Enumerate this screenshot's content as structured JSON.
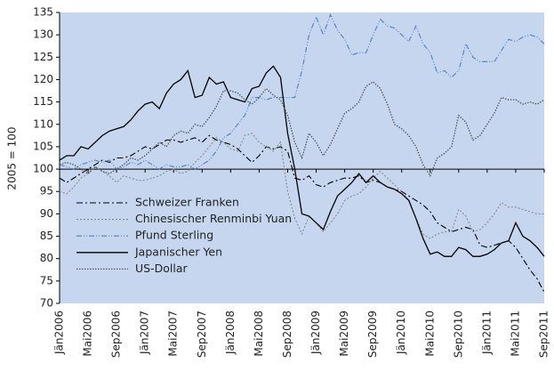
{
  "chart_data": {
    "type": "line",
    "y_axis_label": "2005 = 100",
    "categories": [
      "Jän2006",
      null,
      null,
      null,
      "Mai2006",
      null,
      null,
      null,
      "Sep2006",
      null,
      null,
      null,
      "Jän2007",
      null,
      null,
      null,
      "Mai2007",
      null,
      null,
      null,
      "Sep2007",
      null,
      null,
      null,
      "Jän2008",
      null,
      null,
      null,
      "Mai2008",
      null,
      null,
      null,
      "Sep2008",
      null,
      null,
      null,
      "Jän2009",
      null,
      null,
      null,
      "Mai2009",
      null,
      null,
      null,
      "Sep2009",
      null,
      null,
      null,
      "Jän2010",
      null,
      null,
      null,
      "Mai2010",
      null,
      null,
      null,
      "Sep2010",
      null,
      null,
      null,
      "Jän2011",
      null,
      null,
      null,
      "Mai2011",
      null,
      null,
      null,
      "Sep2011"
    ],
    "ylim": [
      70,
      135
    ],
    "yticks": [
      70,
      75,
      80,
      85,
      90,
      95,
      100,
      105,
      110,
      115,
      120,
      125,
      130,
      135
    ],
    "x_axis_at": 100,
    "background": "#c6d6ef",
    "legend": "lower left",
    "series": [
      {
        "name": "Schweizer Franken",
        "color": "#000000",
        "dash": "7,3,2,3",
        "width": 1.1,
        "values": [
          98,
          97,
          98,
          99,
          100,
          101,
          102,
          101.5,
          102.5,
          102.5,
          103,
          104,
          105,
          104.5,
          105.5,
          106.5,
          106.5,
          106,
          106.5,
          107,
          106,
          107.5,
          106.5,
          106,
          105.5,
          104.5,
          103,
          101.5,
          103,
          105,
          104.5,
          105,
          104,
          98,
          97.5,
          98.5,
          96.5,
          96,
          97,
          97.5,
          98,
          98,
          98.5,
          97,
          97.5,
          97,
          96,
          95.5,
          95,
          94,
          93,
          92,
          90.5,
          88,
          87,
          86,
          86.5,
          87,
          86.5,
          83,
          82.5,
          83,
          83.5,
          84,
          82.5,
          80,
          77.5,
          75.5,
          72.5
        ]
      },
      {
        "name": "Chinesischer Renminbi Yuan",
        "color": "#8a8a8a",
        "dash": "2,2",
        "width": 1.1,
        "values": [
          95,
          94.5,
          96,
          98,
          99,
          100.5,
          99.5,
          98.5,
          97,
          98.5,
          98,
          97.5,
          97.5,
          98,
          98.5,
          99.5,
          100,
          99,
          99.5,
          101.5,
          103,
          105,
          107,
          106,
          104.5,
          104,
          107.5,
          108,
          106,
          105,
          104,
          106,
          95,
          89,
          85.5,
          89.5,
          88,
          86,
          88,
          90,
          93,
          94,
          94.5,
          96,
          98,
          99.5,
          98,
          96.5,
          95,
          93,
          89,
          85.5,
          84.5,
          85.5,
          86,
          86,
          91,
          89.5,
          86,
          86.5,
          88,
          90,
          92.5,
          91.5,
          91.5,
          91,
          90.5,
          90,
          90
        ]
      },
      {
        "name": "Pfund Sterling",
        "color": "#4a80c8",
        "dash": "6,2,1,2,1,2",
        "width": 1.1,
        "values": [
          101,
          100.5,
          100,
          101,
          101.5,
          102,
          101.5,
          102,
          100,
          100.5,
          101.5,
          101,
          102,
          101,
          100,
          101,
          100.5,
          100.5,
          101,
          100,
          101,
          102,
          104,
          107,
          108,
          110,
          112,
          116,
          116,
          115.5,
          116,
          116,
          116,
          116,
          122,
          130,
          134,
          130,
          134.5,
          131,
          129,
          125.5,
          126,
          126,
          130,
          133.5,
          132,
          131.5,
          130,
          128.5,
          132,
          128,
          126,
          121.5,
          122,
          120.5,
          122,
          128,
          125,
          124,
          124,
          124,
          126.5,
          129,
          128.5,
          129.5,
          130,
          129.5,
          128
        ]
      },
      {
        "name": "Japanischer Yen",
        "color": "#000000",
        "dash": "none",
        "width": 1.3,
        "values": [
          102,
          103,
          103,
          105,
          104.5,
          106,
          107.5,
          108.5,
          109,
          109.5,
          111,
          113,
          114.5,
          115,
          113.5,
          117,
          119,
          120,
          122,
          116,
          116.5,
          120.5,
          119,
          119.5,
          116,
          115.5,
          115,
          118,
          118.5,
          121.5,
          123,
          120.5,
          108,
          100,
          90,
          89.5,
          88,
          86.5,
          90.5,
          94,
          95.5,
          97,
          99,
          97,
          98.5,
          97,
          96,
          95.5,
          94.5,
          93,
          89,
          84.5,
          81,
          81.5,
          80.5,
          80.5,
          82.5,
          82,
          80.5,
          80.5,
          81,
          82,
          83.5,
          84,
          88,
          85,
          84,
          82.5,
          80.5
        ]
      },
      {
        "name": "US-Dollar",
        "color": "#555555",
        "dash": "1.5,1.5",
        "width": 1.3,
        "values": [
          101,
          101.5,
          101,
          100,
          99,
          100.5,
          99.5,
          99,
          100,
          101,
          102.5,
          102,
          103,
          104.5,
          106,
          105,
          107.5,
          108.5,
          108,
          110,
          109.5,
          111.5,
          114,
          117.5,
          117.5,
          117,
          115.5,
          114.5,
          116,
          118,
          116.5,
          115.5,
          112,
          106,
          102.5,
          108,
          106,
          103,
          105.5,
          109,
          112.5,
          113.5,
          115,
          118.5,
          119.5,
          118,
          114.5,
          110,
          109,
          107.5,
          105,
          101,
          98.5,
          102.5,
          103.5,
          105,
          112,
          110.5,
          106.5,
          107.5,
          110,
          112.5,
          116,
          115.5,
          115.5,
          114.5,
          115,
          114.5,
          115.5
        ]
      }
    ]
  }
}
